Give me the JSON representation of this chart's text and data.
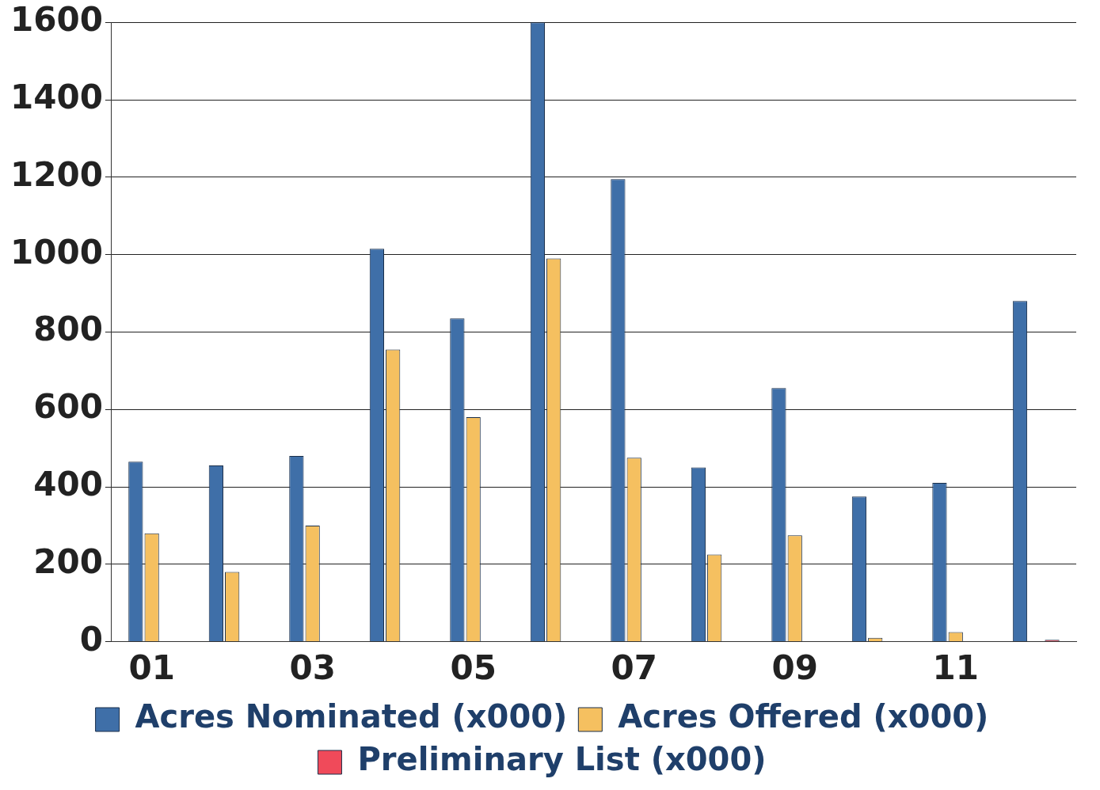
{
  "chart_data": {
    "type": "bar",
    "categories": [
      "01",
      null,
      "03",
      null,
      "05",
      null,
      "07",
      null,
      "09",
      null,
      "11",
      null
    ],
    "series": [
      {
        "name": "Acres Nominated (x000)",
        "color": "#3f6fa8",
        "values": [
          465,
          455,
          480,
          1015,
          835,
          1600,
          1195,
          450,
          655,
          375,
          410,
          880
        ]
      },
      {
        "name": "Acres Offered (x000)",
        "color": "#f5c060",
        "values": [
          280,
          180,
          300,
          755,
          580,
          990,
          475,
          225,
          275,
          10,
          25,
          null
        ]
      },
      {
        "name": "Preliminary List (x000)",
        "color": "#f04a5a",
        "values": [
          null,
          null,
          null,
          null,
          null,
          null,
          null,
          null,
          null,
          null,
          null,
          5
        ]
      }
    ],
    "ylim": [
      0,
      1600
    ],
    "yticks": [
      0,
      200,
      400,
      600,
      800,
      1000,
      1200,
      1400,
      1600
    ],
    "grid": "y",
    "legend": "bottom"
  }
}
